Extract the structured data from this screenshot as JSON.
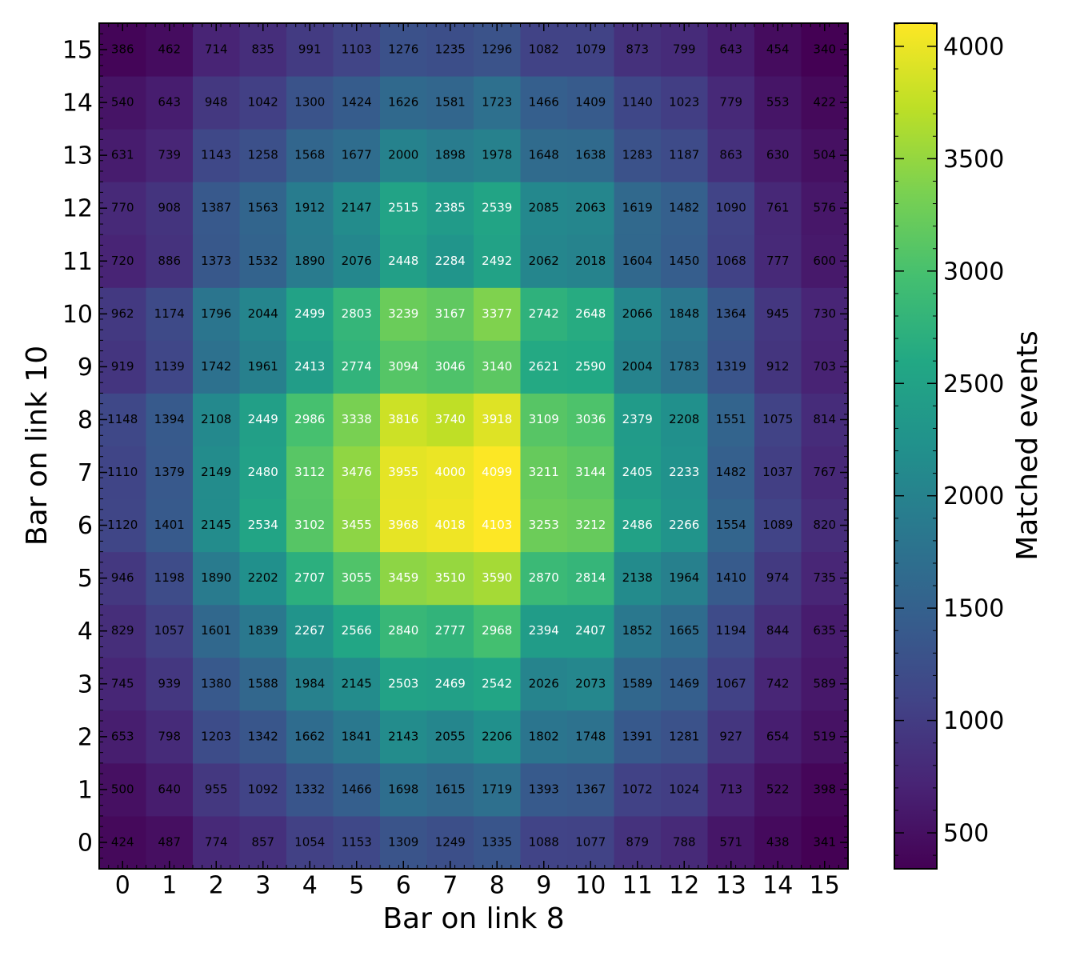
{
  "chart_data": {
    "type": "heatmap",
    "xlabel": "Bar on link 8",
    "ylabel": "Bar on link 10",
    "colorbar_label": "Matched events",
    "colormap": "viridis",
    "xlim": [
      -0.5,
      15.5
    ],
    "ylim": [
      -0.5,
      15.5
    ],
    "xticks": [
      0,
      1,
      2,
      3,
      4,
      5,
      6,
      7,
      8,
      9,
      10,
      11,
      12,
      13,
      14,
      15
    ],
    "yticks": [
      0,
      1,
      2,
      3,
      4,
      5,
      6,
      7,
      8,
      9,
      10,
      11,
      12,
      13,
      14,
      15
    ],
    "zlim": [
      340,
      4103
    ],
    "zticks": [
      500,
      1000,
      1500,
      2000,
      2500,
      3000,
      3500,
      4000
    ],
    "values": [
      [
        424,
        487,
        774,
        857,
        1054,
        1153,
        1309,
        1249,
        1335,
        1088,
        1077,
        879,
        788,
        571,
        438,
        341
      ],
      [
        500,
        640,
        955,
        1092,
        1332,
        1466,
        1698,
        1615,
        1719,
        1393,
        1367,
        1072,
        1024,
        713,
        522,
        398
      ],
      [
        653,
        798,
        1203,
        1342,
        1662,
        1841,
        2143,
        2055,
        2206,
        1802,
        1748,
        1391,
        1281,
        927,
        654,
        519
      ],
      [
        745,
        939,
        1380,
        1588,
        1984,
        2145,
        2503,
        2469,
        2542,
        2026,
        2073,
        1589,
        1469,
        1067,
        742,
        589
      ],
      [
        829,
        1057,
        1601,
        1839,
        2267,
        2566,
        2840,
        2777,
        2968,
        2394,
        2407,
        1852,
        1665,
        1194,
        844,
        635
      ],
      [
        946,
        1198,
        1890,
        2202,
        2707,
        3055,
        3459,
        3510,
        3590,
        2870,
        2814,
        2138,
        1964,
        1410,
        974,
        735
      ],
      [
        1120,
        1401,
        2145,
        2534,
        3102,
        3455,
        3968,
        4018,
        4103,
        3253,
        3212,
        2486,
        2266,
        1554,
        1089,
        820
      ],
      [
        1110,
        1379,
        2149,
        2480,
        3112,
        3476,
        3955,
        4000,
        4099,
        3211,
        3144,
        2405,
        2233,
        1482,
        1037,
        767
      ],
      [
        1148,
        1394,
        2108,
        2449,
        2986,
        3338,
        3816,
        3740,
        3918,
        3109,
        3036,
        2379,
        2208,
        1551,
        1075,
        814
      ],
      [
        919,
        1139,
        1742,
        1961,
        2413,
        2774,
        3094,
        3046,
        3140,
        2621,
        2590,
        2004,
        1783,
        1319,
        912,
        703
      ],
      [
        962,
        1174,
        1796,
        2044,
        2499,
        2803,
        3239,
        3167,
        3377,
        2742,
        2648,
        2066,
        1848,
        1364,
        945,
        730
      ],
      [
        720,
        886,
        1373,
        1532,
        1890,
        2076,
        2448,
        2284,
        2492,
        2062,
        2018,
        1604,
        1450,
        1068,
        777,
        600
      ],
      [
        770,
        908,
        1387,
        1563,
        1912,
        2147,
        2515,
        2385,
        2539,
        2085,
        2063,
        1619,
        1482,
        1090,
        761,
        576
      ],
      [
        631,
        739,
        1143,
        1258,
        1568,
        1677,
        2000,
        1898,
        1978,
        1648,
        1638,
        1283,
        1187,
        863,
        630,
        504
      ],
      [
        540,
        643,
        948,
        1042,
        1300,
        1424,
        1626,
        1581,
        1723,
        1466,
        1409,
        1140,
        1023,
        779,
        553,
        422
      ],
      [
        386,
        462,
        714,
        835,
        991,
        1103,
        1276,
        1235,
        1296,
        1082,
        1079,
        873,
        799,
        643,
        454,
        340
      ]
    ]
  }
}
